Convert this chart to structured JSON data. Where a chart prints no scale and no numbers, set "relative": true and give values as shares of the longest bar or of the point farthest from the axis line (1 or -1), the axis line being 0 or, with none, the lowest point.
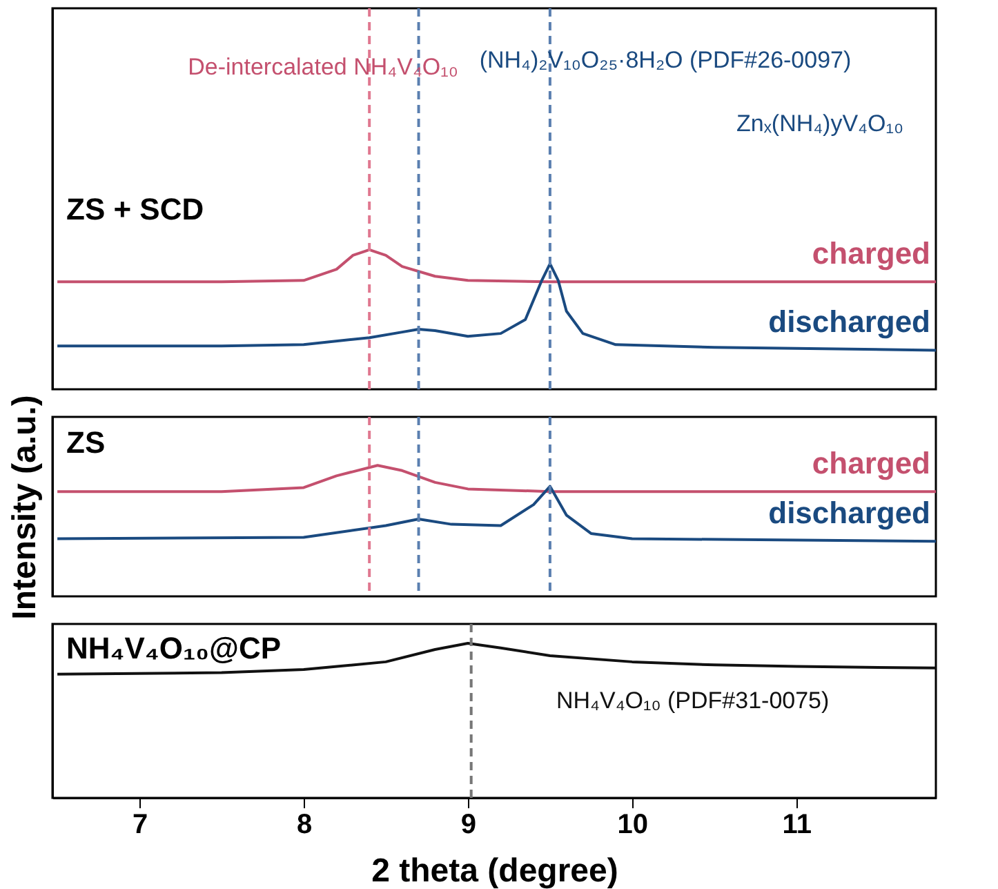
{
  "chart_data": [
    {
      "type": "line",
      "title": "ZS + SCD",
      "relative": true,
      "xlim": [
        6.47,
        11.85
      ],
      "tick_labels": false,
      "series": [
        {
          "name": "charged",
          "color": "#c4506e",
          "x": [
            6.5,
            7.5,
            8.0,
            8.2,
            8.3,
            8.4,
            8.5,
            8.6,
            8.8,
            9.0,
            9.5,
            10.0,
            11.85
          ],
          "values": [
            0.77,
            0.77,
            0.78,
            0.86,
            0.96,
            1.0,
            0.96,
            0.88,
            0.81,
            0.78,
            0.77,
            0.77,
            0.77
          ]
        },
        {
          "name": "discharged",
          "color": "#1a4a80",
          "x": [
            6.5,
            7.5,
            8.0,
            8.4,
            8.6,
            8.7,
            8.8,
            9.0,
            9.2,
            9.35,
            9.45,
            9.5,
            9.55,
            9.6,
            9.7,
            9.9,
            10.5,
            11.85
          ],
          "values": [
            0.31,
            0.31,
            0.32,
            0.37,
            0.41,
            0.43,
            0.42,
            0.38,
            0.4,
            0.5,
            0.78,
            0.9,
            0.78,
            0.56,
            0.4,
            0.32,
            0.3,
            0.28
          ]
        }
      ],
      "ref_lines": [
        {
          "axis": "x",
          "value": 8.4,
          "color": "#e07890",
          "line_style": "dashed"
        },
        {
          "axis": "x",
          "value": 8.7,
          "color": "#5a7fb0",
          "line_style": "dashed"
        },
        {
          "axis": "x",
          "value": 9.5,
          "color": "#5a7fb0",
          "line_style": "dashed"
        }
      ],
      "annotations": [
        "De-intercalated NH₄V₄O₁₀",
        "(NH₄)₂V₁₀O₂₅·8H₂O (PDF#26-0097)",
        "Znₓ(NH₄)yV₄O₁₀"
      ]
    },
    {
      "type": "line",
      "title": "ZS",
      "ylabel": "Intensity (a.u.)",
      "relative": true,
      "xlim": [
        6.47,
        11.85
      ],
      "tick_labels": false,
      "series": [
        {
          "name": "charged",
          "color": "#c4506e",
          "x": [
            6.5,
            7.5,
            8.0,
            8.2,
            8.45,
            8.6,
            8.8,
            9.0,
            9.5,
            11.85
          ],
          "values": [
            0.8,
            0.8,
            0.83,
            0.92,
            1.0,
            0.96,
            0.87,
            0.82,
            0.8,
            0.8
          ]
        },
        {
          "name": "discharged",
          "color": "#1a4a80",
          "x": [
            6.5,
            8.0,
            8.5,
            8.7,
            8.9,
            9.2,
            9.4,
            9.5,
            9.6,
            9.75,
            10.0,
            11.85
          ],
          "values": [
            0.44,
            0.45,
            0.54,
            0.59,
            0.55,
            0.54,
            0.7,
            0.84,
            0.62,
            0.48,
            0.44,
            0.42
          ]
        }
      ],
      "ref_lines": [
        {
          "axis": "x",
          "value": 8.4,
          "color": "#e07890",
          "line_style": "dashed"
        },
        {
          "axis": "x",
          "value": 8.7,
          "color": "#5a7fb0",
          "line_style": "dashed"
        },
        {
          "axis": "x",
          "value": 9.5,
          "color": "#5a7fb0",
          "line_style": "dashed"
        }
      ]
    },
    {
      "type": "line",
      "title": "NH₄V₄O₁₀@CP",
      "xlabel": "2 theta (degree)",
      "relative": true,
      "xlim": [
        6.47,
        11.85
      ],
      "xticks": [
        7,
        8,
        9,
        10,
        11
      ],
      "tick_labels": "x",
      "series": [
        {
          "color": "#111111",
          "x": [
            6.5,
            7.5,
            8.0,
            8.5,
            8.8,
            9.0,
            9.2,
            9.5,
            10.0,
            10.5,
            11.0,
            11.85
          ],
          "values": [
            0.8,
            0.81,
            0.83,
            0.88,
            0.96,
            1.0,
            0.97,
            0.92,
            0.88,
            0.86,
            0.85,
            0.84
          ]
        }
      ],
      "ref_lines": [
        {
          "axis": "x",
          "value": 9.02,
          "color": "#777777",
          "line_style": "dashed"
        }
      ],
      "annotations": [
        "NH₄V₄O₁₀ (PDF#31-0075)"
      ]
    }
  ]
}
